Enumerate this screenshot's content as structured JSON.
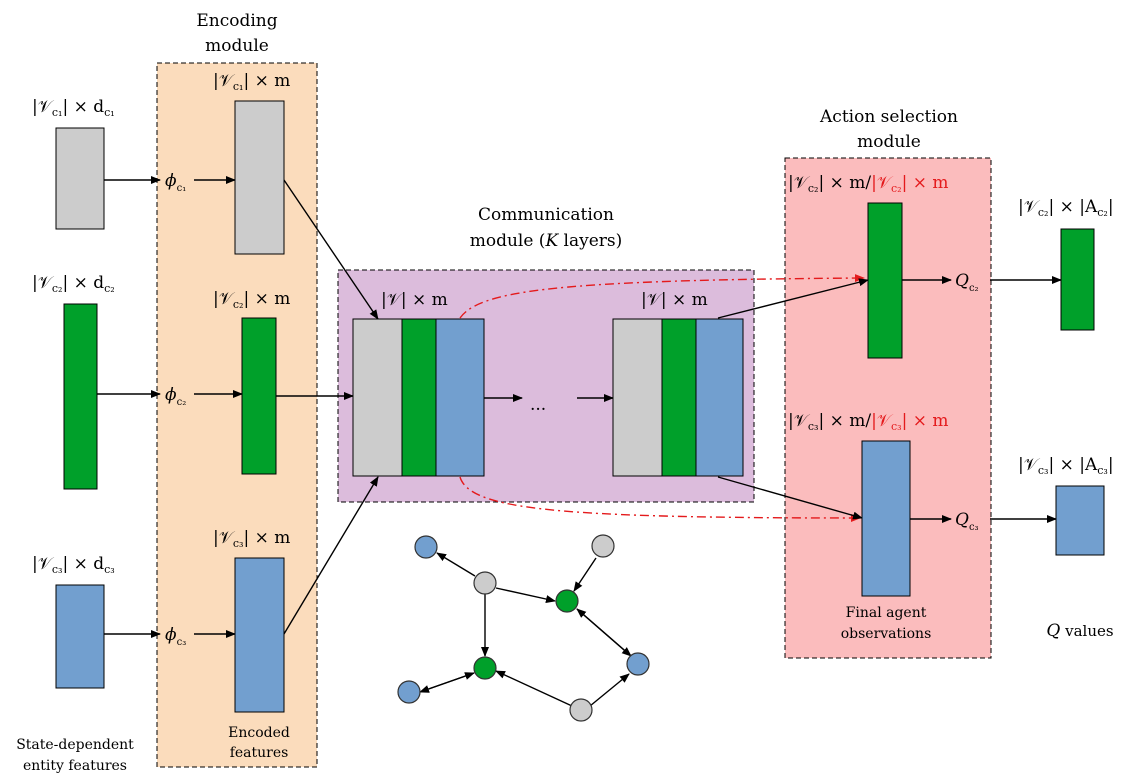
{
  "colors": {
    "grey": "#cccccc",
    "green": "#00a02a",
    "blue": "#729fcf",
    "encoding_bg": "#fbdcbc",
    "communication_bg": "#dcbcdc",
    "action_bg": "#fbbcbd",
    "red_text": "#e41a1c"
  },
  "icons": {
    "arrow": "arrow-right-icon"
  },
  "modules": {
    "encoding": {
      "title_line1": "Encoding",
      "title_line2": "module"
    },
    "communication": {
      "title_line1": "Communication",
      "title_line2_prefix": "module (",
      "title_line2_var": "K",
      "title_line2_suffix": " layers)"
    },
    "action": {
      "title_line1": "Action selection",
      "title_line2": "module"
    }
  },
  "inputs": {
    "c1_label": {
      "prefix": "|𝒱",
      "sub": "c₁",
      "suffix": "| × d",
      "sub2": "c₁"
    },
    "c2_label": {
      "prefix": "|𝒱",
      "sub": "c₂",
      "suffix": "| × d",
      "sub2": "c₂"
    },
    "c3_label": {
      "prefix": "|𝒱",
      "sub": "c₃",
      "suffix": "| × d",
      "sub2": "c₃"
    },
    "caption_line1": "State-dependent",
    "caption_line2": "entity features"
  },
  "encoders": {
    "phi": "ϕ",
    "c1_sub": "c₁",
    "c2_sub": "c₂",
    "c3_sub": "c₃",
    "c1_out": {
      "prefix": "|𝒱",
      "sub": "c₁",
      "suffix": "| × m"
    },
    "c2_out": {
      "prefix": "|𝒱",
      "sub": "c₂",
      "suffix": "| × m"
    },
    "c3_out": {
      "prefix": "|𝒱",
      "sub": "c₃",
      "suffix": "| × m"
    },
    "caption_line1": "Encoded",
    "caption_line2": "features"
  },
  "communication": {
    "layer_label": "|𝒱| × m",
    "ellipsis": "..."
  },
  "action": {
    "c2_label_black": {
      "prefix": "|𝒱",
      "sub": "c₂",
      "suffix": "| × m/"
    },
    "c2_label_red": {
      "prefix": "|𝒱",
      "sub": "c₂",
      "suffix": "| × m"
    },
    "c3_label_black": {
      "prefix": "|𝒱",
      "sub": "c₃",
      "suffix": "| × m/"
    },
    "c3_label_red": {
      "prefix": "|𝒱",
      "sub": "c₃",
      "suffix": "| × m"
    },
    "q": "Q",
    "q_c2_sub": "c₂",
    "q_c3_sub": "c₃",
    "caption_line1": "Final agent",
    "caption_line2": "observations"
  },
  "outputs": {
    "c2_label": {
      "prefix": "|𝒱",
      "sub": "c₂",
      "suffix": "| × |A",
      "sub2": "c₂",
      "end": "|"
    },
    "c3_label": {
      "prefix": "|𝒱",
      "sub": "c₃",
      "suffix": "| × |A",
      "sub2": "c₃",
      "end": "|"
    },
    "q_values_q": "Q",
    "q_values_text": " values"
  }
}
